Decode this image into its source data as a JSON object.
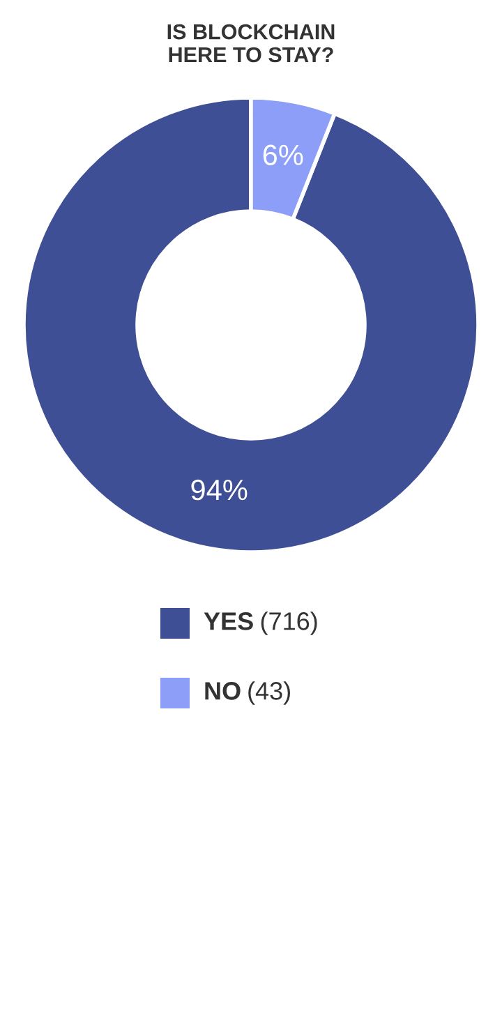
{
  "chart_data": {
    "type": "donut",
    "title": "IS BLOCKCHAIN\nHERE TO STAY?",
    "categories": [
      "YES",
      "NO"
    ],
    "values": [
      94,
      6
    ],
    "annotations": [
      "(716)",
      "(43)"
    ],
    "value_labels": [
      "94%",
      "6%"
    ],
    "colors": [
      "#3f4f95",
      "#8c9ef7"
    ],
    "legend": "bottom"
  }
}
